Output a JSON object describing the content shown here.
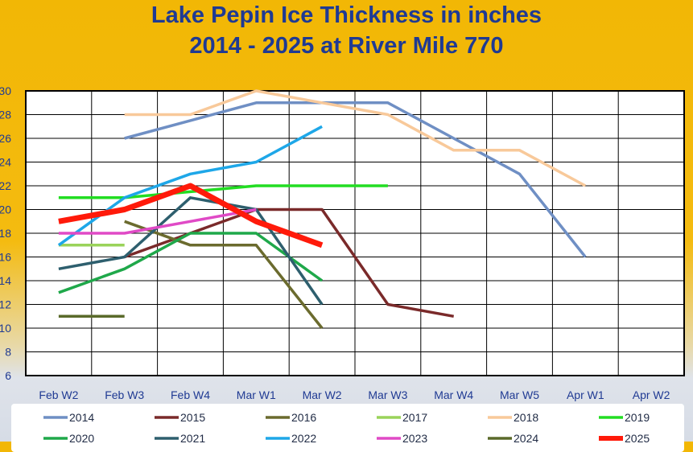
{
  "chart_data": {
    "type": "line",
    "title": [
      "Lake Pepin Ice Thickness in inches",
      "2014 - 2025 at River Mile 770"
    ],
    "categories": [
      "Feb W2",
      "Feb W3",
      "Feb W4",
      "Mar W1",
      "Mar W2",
      "Mar W3",
      "Mar W4",
      "Mar W5",
      "Apr W1",
      "Apr W2"
    ],
    "ylim": [
      6,
      30
    ],
    "yticks": [
      6,
      8,
      10,
      12,
      14,
      16,
      18,
      20,
      22,
      24,
      26,
      28,
      30
    ],
    "grid": true,
    "legend_position": "bottom",
    "series": [
      {
        "name": "2014",
        "color": "#6f8fc4",
        "width": 3.5,
        "values": [
          null,
          26,
          27.5,
          29,
          29,
          29,
          26,
          23,
          16,
          null
        ]
      },
      {
        "name": "2015",
        "color": "#7a2a2a",
        "width": 3.5,
        "values": [
          null,
          16,
          18,
          20,
          20,
          12,
          11,
          null,
          null,
          null
        ]
      },
      {
        "name": "2016",
        "color": "#6b6b2e",
        "width": 3.5,
        "values": [
          null,
          19,
          17,
          17,
          10,
          null,
          null,
          null,
          null,
          null
        ]
      },
      {
        "name": "2017",
        "color": "#9ad35a",
        "width": 3.5,
        "values": [
          17,
          17,
          null,
          null,
          null,
          null,
          null,
          null,
          null,
          null
        ]
      },
      {
        "name": "2018",
        "color": "#f8c99a",
        "width": 3.5,
        "values": [
          null,
          28,
          28,
          30,
          29,
          28,
          25,
          25,
          22,
          null
        ]
      },
      {
        "name": "2019",
        "color": "#22dd22",
        "width": 3.5,
        "values": [
          21,
          21,
          21.5,
          22,
          22,
          22,
          null,
          null,
          null,
          null
        ]
      },
      {
        "name": "2020",
        "color": "#1fa84a",
        "width": 3.5,
        "values": [
          13,
          15,
          18,
          18,
          14,
          null,
          null,
          null,
          null,
          null
        ]
      },
      {
        "name": "2021",
        "color": "#2e5f6e",
        "width": 3.5,
        "values": [
          15,
          16,
          21,
          20,
          12,
          null,
          null,
          null,
          null,
          null
        ]
      },
      {
        "name": "2022",
        "color": "#1ea7e8",
        "width": 3.5,
        "values": [
          17,
          21,
          23,
          24,
          27,
          null,
          null,
          null,
          null,
          null
        ]
      },
      {
        "name": "2023",
        "color": "#e04ac6",
        "width": 3.5,
        "values": [
          18,
          18,
          19,
          20,
          null,
          null,
          null,
          null,
          null,
          null
        ]
      },
      {
        "name": "2024",
        "color": "#5a6a2a",
        "width": 3.5,
        "values": [
          11,
          11,
          null,
          null,
          null,
          null,
          null,
          null,
          null,
          null
        ]
      },
      {
        "name": "2025",
        "color": "#ff1a0a",
        "width": 7,
        "values": [
          19,
          20,
          22,
          19,
          17,
          null,
          null,
          null,
          null,
          null
        ]
      }
    ]
  }
}
